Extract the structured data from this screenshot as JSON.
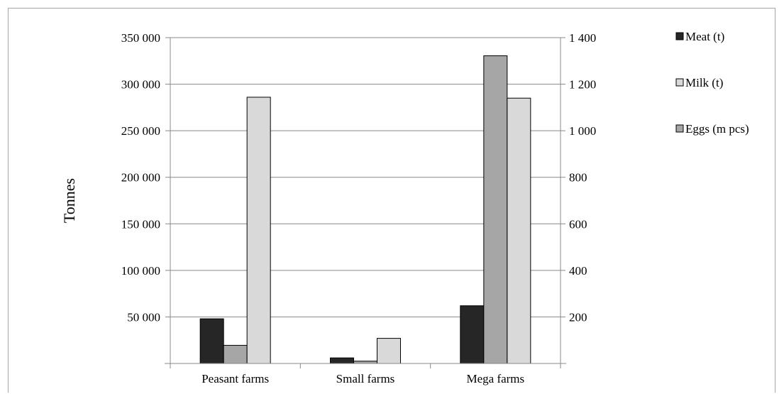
{
  "chart_data": {
    "type": "bar",
    "categories": [
      "Peasant farms",
      "Small farms",
      "Mega farms"
    ],
    "series": [
      {
        "name": "Meat (t)",
        "axis": "left",
        "color": "#262626",
        "values": [
          48000,
          6000,
          62000
        ]
      },
      {
        "name": "Eggs (m pcs)",
        "axis": "right",
        "color": "#a6a6a6",
        "values": [
          78,
          10,
          1322
        ]
      },
      {
        "name": "Milk (t)",
        "axis": "left",
        "color": "#d9d9d9",
        "values": [
          286000,
          27000,
          285000
        ]
      }
    ],
    "legend": {
      "placement": "right",
      "order": [
        "Meat (t)",
        "Milk (t)",
        "Eggs (m pcs)"
      ]
    },
    "ylabel": "Tonnes",
    "ylim": [
      0,
      350000
    ],
    "y_ticks": [
      "50 000",
      "100 000",
      "150 000",
      "200 000",
      "250 000",
      "300 000",
      "350 000"
    ],
    "y_tick_values": [
      50000,
      100000,
      150000,
      200000,
      250000,
      300000,
      350000
    ],
    "y2lim": [
      0,
      1400
    ],
    "y2_ticks": [
      "200",
      "400",
      "600",
      "800",
      "1 000",
      "1 200",
      "1 400"
    ],
    "y2_tick_values": [
      200,
      400,
      600,
      800,
      1000,
      1200,
      1400
    ],
    "grid": true,
    "colors": {
      "gridline": "#888888",
      "axis": "#888888",
      "bar_stroke": "#000000",
      "frame": "#a6a6a6"
    }
  }
}
